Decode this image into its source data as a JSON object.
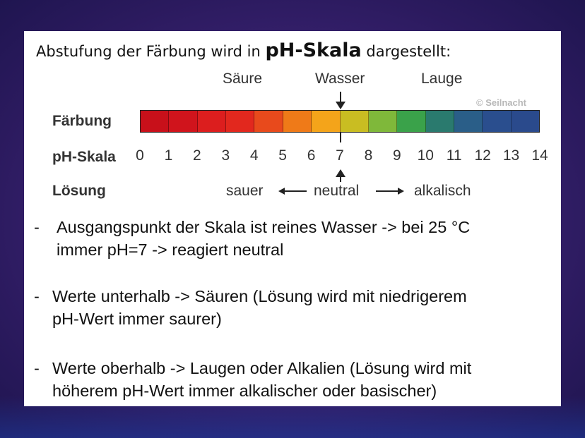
{
  "heading": {
    "pre": "Abstufung der Färbung wird in ",
    "emph": "pH-Skala",
    "post": " dargestellt:"
  },
  "figure": {
    "labels": {
      "acid": "Säure",
      "water": "Wasser",
      "base": "Lauge"
    },
    "watermark": "© Seilnacht",
    "rows": {
      "color": "Färbung",
      "scale": "pH-Skala",
      "solution": "Lösung"
    },
    "ticks": [
      "0",
      "1",
      "2",
      "3",
      "4",
      "5",
      "6",
      "7",
      "8",
      "9",
      "10",
      "11",
      "12",
      "13",
      "14"
    ],
    "colors": [
      "#c8101a",
      "#d0141c",
      "#dc1e1e",
      "#e2281e",
      "#e84a1c",
      "#ef7a18",
      "#f4a41a",
      "#c9bd22",
      "#7fb83a",
      "#3aa24a",
      "#2a7a6e",
      "#2a5e88",
      "#2a4e8e",
      "#2a4a8c"
    ],
    "solution": {
      "acidic": "sauer",
      "neutral": "neutral",
      "alkaline": "alkalisch"
    }
  },
  "bullets": [
    {
      "dash": "-",
      "lines": [
        "Ausgangspunkt der Skala ist reines Wasser -> bei 25 °C",
        "immer pH=7  -> reagiert neutral"
      ]
    },
    {
      "dash": "-",
      "lines": [
        "Werte unterhalb -> Säuren (Lösung wird mit niedrigerem",
        "pH-Wert immer saurer)"
      ]
    },
    {
      "dash": "-",
      "lines": [
        "Werte oberhalb -> Laugen oder Alkalien (Lösung wird mit",
        "höherem pH-Wert immer alkalischer oder basischer)"
      ]
    }
  ]
}
